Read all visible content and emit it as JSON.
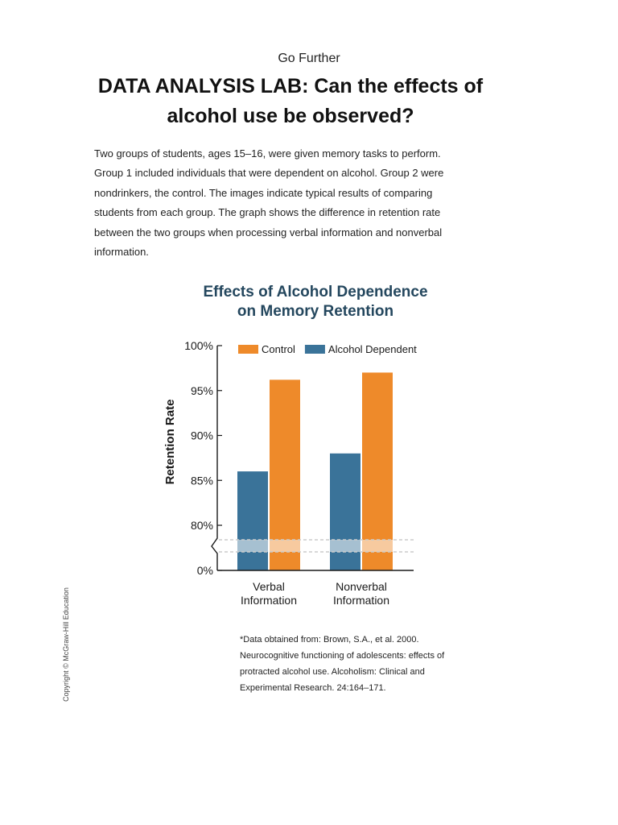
{
  "page": {
    "eyebrow": "Go Further",
    "title": "DATA ANALYSIS LAB: Can the effects of alcohol use be observed?",
    "intro": "Two groups of students, ages 15–16, were given memory tasks to perform. Group 1 included individuals that were dependent on alcohol. Group 2 were nondrinkers, the control. The images indicate typical results of comparing students from each group. The graph shows the difference in retention rate between the two groups when processing verbal information and nonverbal information.",
    "source_note": "*Data obtained from: Brown, S.A., et al. 2000. Neurocognitive functioning of adolescents: effects of protracted alcohol use. Alcoholism: Clinical and Experimental Research. 24:164–171.",
    "copyright": "Copyright © McGraw-Hill Education"
  },
  "chart_data": {
    "type": "bar",
    "title": [
      "Effects of Alcohol Dependence",
      "on Memory Retention"
    ],
    "ylabel": "Retention Rate",
    "categories": [
      [
        "Verbal",
        "Information"
      ],
      [
        "Nonverbal",
        "Information"
      ]
    ],
    "series": [
      {
        "name": "Alcohol Dependent",
        "color": "#3a7399",
        "values": [
          86,
          88
        ]
      },
      {
        "name": "Control",
        "color": "#ee8a2a",
        "values": [
          96.2,
          97
        ]
      }
    ],
    "legend_order": [
      "Control",
      "Alcohol Dependent"
    ],
    "legend_position": "top",
    "ylim": [
      80,
      100
    ],
    "yticks": [
      "0%",
      "80%",
      "85%",
      "90%",
      "95%",
      "100%"
    ],
    "axis_break": true,
    "grid": false,
    "colors": {
      "title": "#24475e",
      "axis": "#1a1a1a",
      "break_band": "#cccccc"
    }
  }
}
